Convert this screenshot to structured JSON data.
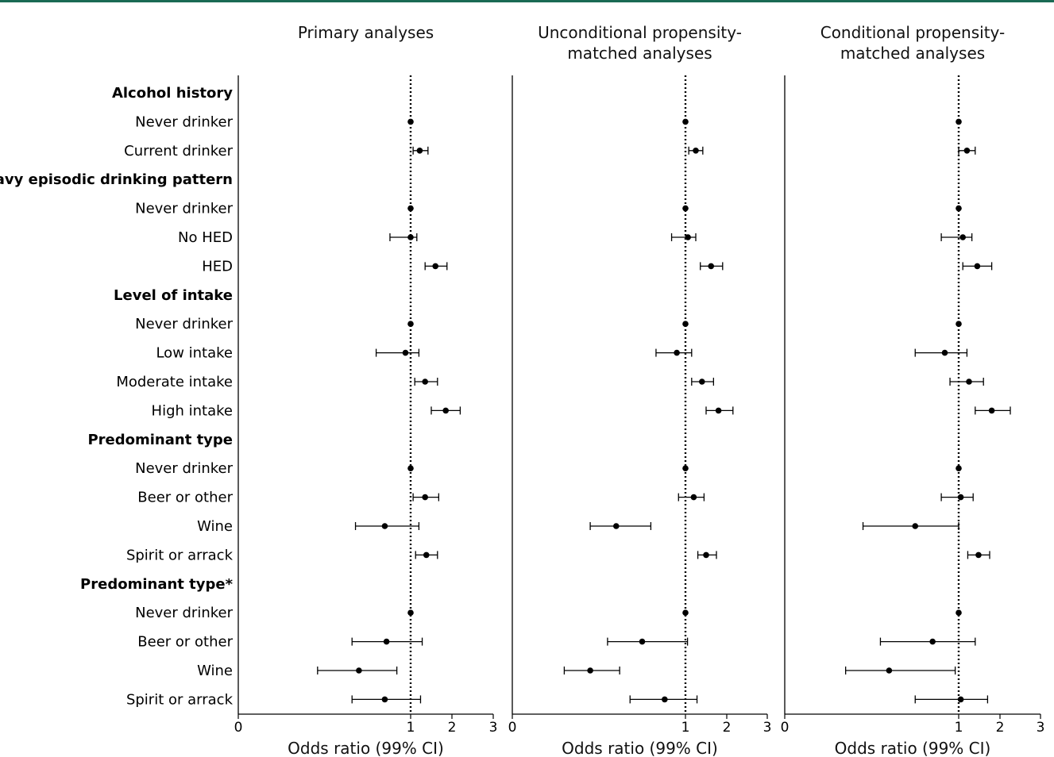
{
  "colors": {
    "top_rule": "#1a6a54",
    "ink": "#000000"
  },
  "rows": [
    {
      "label": "Alcohol history",
      "header": true
    },
    {
      "label": "Never drinker",
      "header": false
    },
    {
      "label": "Current drinker",
      "header": false
    },
    {
      "label": "Heavy episodic drinking pattern",
      "header": true
    },
    {
      "label": "Never drinker",
      "header": false
    },
    {
      "label": "No HED",
      "header": false
    },
    {
      "label": "HED",
      "header": false
    },
    {
      "label": "Level of intake",
      "header": true
    },
    {
      "label": "Never drinker",
      "header": false
    },
    {
      "label": "Low intake",
      "header": false
    },
    {
      "label": "Moderate intake",
      "header": false
    },
    {
      "label": "High intake",
      "header": false
    },
    {
      "label": "Predominant type",
      "header": true
    },
    {
      "label": "Never drinker",
      "header": false
    },
    {
      "label": "Beer or other",
      "header": false
    },
    {
      "label": "Wine",
      "header": false
    },
    {
      "label": "Spirit or arrack",
      "header": false
    },
    {
      "label": "Predominant type*",
      "header": true
    },
    {
      "label": "Never drinker",
      "header": false
    },
    {
      "label": "Beer or other",
      "header": false
    },
    {
      "label": "Wine",
      "header": false
    },
    {
      "label": "Spirit or arrack",
      "header": false
    }
  ],
  "chart_data": [
    {
      "type": "forest",
      "title": "Primary analyses",
      "xlabel": "Odds ratio (99% CI)",
      "xticks": [
        "0",
        "1",
        "2",
        "3"
      ],
      "xlim": [
        0,
        3
      ],
      "reference_line": 1,
      "estimates": [
        null,
        {
          "or": 1.0,
          "lo": null,
          "hi": null
        },
        {
          "or": 1.22,
          "lo": 1.06,
          "hi": 1.42
        },
        null,
        {
          "or": 1.0,
          "lo": null,
          "hi": null
        },
        {
          "or": 1.0,
          "lo": 0.88,
          "hi": 1.15
        },
        {
          "or": 1.6,
          "lo": 1.35,
          "hi": 1.88
        },
        null,
        {
          "or": 1.0,
          "lo": null,
          "hi": null
        },
        {
          "or": 0.97,
          "lo": 0.8,
          "hi": 1.2
        },
        {
          "or": 1.35,
          "lo": 1.1,
          "hi": 1.65
        },
        {
          "or": 1.85,
          "lo": 1.5,
          "hi": 2.2
        },
        null,
        {
          "or": 1.0,
          "lo": null,
          "hi": null
        },
        {
          "or": 1.35,
          "lo": 1.06,
          "hi": 1.68
        },
        {
          "or": 0.85,
          "lo": 0.68,
          "hi": 1.2
        },
        {
          "or": 1.38,
          "lo": 1.12,
          "hi": 1.65
        },
        null,
        {
          "or": 1.0,
          "lo": null,
          "hi": null
        },
        {
          "or": 0.86,
          "lo": 0.66,
          "hi": 1.28
        },
        {
          "or": 0.7,
          "lo": 0.46,
          "hi": 0.92
        },
        {
          "or": 0.85,
          "lo": 0.66,
          "hi": 1.24
        }
      ]
    },
    {
      "type": "forest",
      "title": "Unconditional propensity-matched analyses",
      "xlabel": "Odds ratio (99% CI)",
      "xticks": [
        "0",
        "1",
        "2",
        "3"
      ],
      "xlim": [
        0,
        3
      ],
      "reference_line": 1,
      "estimates": [
        null,
        {
          "or": 1.0,
          "lo": null,
          "hi": null
        },
        {
          "or": 1.25,
          "lo": 1.08,
          "hi": 1.42
        },
        null,
        {
          "or": 1.0,
          "lo": null,
          "hi": null
        },
        {
          "or": 1.06,
          "lo": 0.92,
          "hi": 1.25
        },
        {
          "or": 1.62,
          "lo": 1.36,
          "hi": 1.9
        },
        null,
        {
          "or": 1.0,
          "lo": null,
          "hi": null
        },
        {
          "or": 0.95,
          "lo": 0.83,
          "hi": 1.15
        },
        {
          "or": 1.4,
          "lo": 1.15,
          "hi": 1.68
        },
        {
          "or": 1.8,
          "lo": 1.5,
          "hi": 2.15
        },
        null,
        {
          "or": 1.0,
          "lo": null,
          "hi": null
        },
        {
          "or": 1.2,
          "lo": 0.96,
          "hi": 1.45
        },
        {
          "or": 0.6,
          "lo": 0.45,
          "hi": 0.8
        },
        {
          "or": 1.5,
          "lo": 1.3,
          "hi": 1.75
        },
        null,
        {
          "or": 1.0,
          "lo": null,
          "hi": null
        },
        {
          "or": 0.75,
          "lo": 0.55,
          "hi": 1.05
        },
        {
          "or": 0.45,
          "lo": 0.3,
          "hi": 0.62
        },
        {
          "or": 0.88,
          "lo": 0.68,
          "hi": 1.28
        }
      ]
    },
    {
      "type": "forest",
      "title": "Conditional propensity-matched analyses",
      "xlabel": "Odds ratio (99% CI)",
      "xticks": [
        "0",
        "1",
        "2",
        "3"
      ],
      "xlim": [
        0,
        3
      ],
      "reference_line": 1,
      "estimates": [
        null,
        {
          "or": 1.0,
          "lo": null,
          "hi": null
        },
        {
          "or": 1.2,
          "lo": 1.0,
          "hi": 1.4
        },
        null,
        {
          "or": 1.0,
          "lo": null,
          "hi": null
        },
        {
          "or": 1.1,
          "lo": 0.9,
          "hi": 1.32
        },
        {
          "or": 1.45,
          "lo": 1.1,
          "hi": 1.8
        },
        null,
        {
          "or": 1.0,
          "lo": null,
          "hi": null
        },
        {
          "or": 0.92,
          "lo": 0.75,
          "hi": 1.2
        },
        {
          "or": 1.25,
          "lo": 0.95,
          "hi": 1.6
        },
        {
          "or": 1.8,
          "lo": 1.4,
          "hi": 2.25
        },
        null,
        {
          "or": 1.0,
          "lo": null,
          "hi": null
        },
        {
          "or": 1.05,
          "lo": 0.9,
          "hi": 1.35
        },
        {
          "or": 0.75,
          "lo": 0.45,
          "hi": 1.0
        },
        {
          "or": 1.48,
          "lo": 1.22,
          "hi": 1.75
        },
        null,
        {
          "or": 1.0,
          "lo": null,
          "hi": null
        },
        {
          "or": 0.85,
          "lo": 0.55,
          "hi": 1.4
        },
        {
          "or": 0.6,
          "lo": 0.35,
          "hi": 0.98
        },
        {
          "or": 1.05,
          "lo": 0.75,
          "hi": 1.7
        }
      ]
    }
  ]
}
